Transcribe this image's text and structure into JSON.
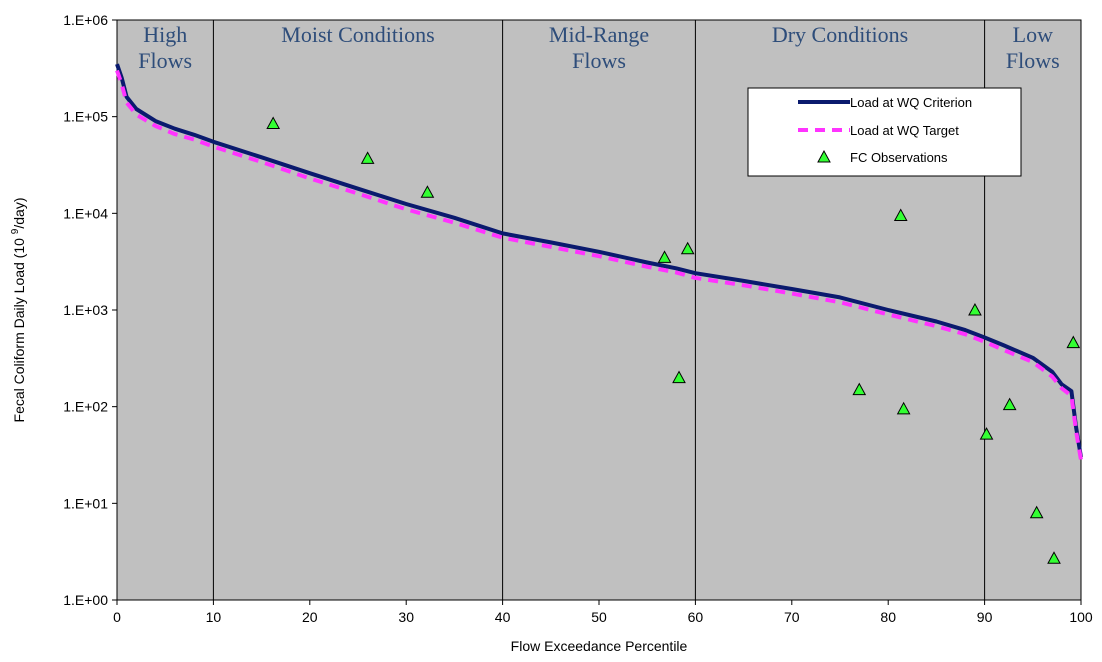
{
  "chart_data": {
    "type": "line",
    "xlabel": "Flow Exceedance Percentile",
    "ylabel_prefix": "Fecal Coliform Daily Load (10 ",
    "ylabel_sup": "9",
    "ylabel_suffix": "/day)",
    "xlim": [
      0,
      100
    ],
    "ylim": [
      1,
      1000000
    ],
    "y_scale": "log",
    "x_ticks": [
      0,
      10,
      20,
      30,
      40,
      50,
      60,
      70,
      80,
      90,
      100
    ],
    "y_ticks": [
      {
        "value": 1,
        "label": "1.E+00"
      },
      {
        "value": 10,
        "label": "1.E+01"
      },
      {
        "value": 100,
        "label": "1.E+02"
      },
      {
        "value": 1000,
        "label": "1.E+03"
      },
      {
        "value": 10000,
        "label": "1.E+04"
      },
      {
        "value": 100000,
        "label": "1.E+05"
      },
      {
        "value": 1000000,
        "label": "1.E+06"
      }
    ],
    "plot_background": "#c0c0c0",
    "dividers": [
      10,
      40,
      60,
      90
    ],
    "regions": [
      {
        "lines": [
          "High",
          "Flows"
        ],
        "x": 5
      },
      {
        "lines": [
          "Moist Conditions"
        ],
        "x": 25
      },
      {
        "lines": [
          "Mid-Range",
          "Flows"
        ],
        "x": 50
      },
      {
        "lines": [
          "Dry Conditions"
        ],
        "x": 75
      },
      {
        "lines": [
          "Low",
          "Flows"
        ],
        "x": 95
      }
    ],
    "legend_position": "top-right",
    "series": [
      {
        "name": "Load at WQ Criterion",
        "style": "line",
        "color": "#0a1a6e",
        "x": [
          0,
          0.5,
          1,
          2,
          4,
          6,
          8,
          10,
          15,
          20,
          25,
          30,
          35,
          40,
          45,
          50,
          55,
          58,
          60,
          65,
          70,
          75,
          80,
          85,
          88,
          90,
          92,
          95,
          97,
          98,
          99,
          99.5,
          100
        ],
        "y": [
          350000,
          250000,
          160000,
          120000,
          90000,
          75000,
          65000,
          55000,
          38000,
          26000,
          18000,
          12500,
          9000,
          6200,
          5000,
          4000,
          3100,
          2700,
          2400,
          2000,
          1650,
          1350,
          1000,
          760,
          620,
          520,
          430,
          320,
          230,
          170,
          145,
          60,
          30
        ]
      },
      {
        "name": "Load at WQ Target",
        "style": "dashed",
        "color": "#ff33ff",
        "x": [
          0,
          0.5,
          1,
          2,
          4,
          6,
          8,
          10,
          15,
          20,
          25,
          30,
          35,
          40,
          45,
          50,
          55,
          58,
          60,
          65,
          70,
          75,
          80,
          85,
          88,
          90,
          92,
          95,
          97,
          98,
          99,
          99.5,
          100
        ],
        "y": [
          300000,
          215000,
          140000,
          105000,
          80000,
          66000,
          58000,
          49000,
          34000,
          23000,
          16000,
          11000,
          8000,
          5600,
          4500,
          3600,
          2800,
          2450,
          2150,
          1800,
          1480,
          1200,
          900,
          680,
          560,
          470,
          385,
          290,
          205,
          155,
          130,
          55,
          28
        ]
      },
      {
        "name": "FC Observations",
        "style": "marker",
        "color": "#33ff33",
        "x": [
          16.2,
          26.0,
          32.2,
          56.8,
          58.3,
          59.2,
          77.0,
          81.3,
          81.6,
          89.0,
          90.2,
          92.6,
          95.4,
          97.2,
          99.2
        ],
        "y": [
          85000,
          37000,
          16500,
          3500,
          200,
          4300,
          150,
          9500,
          95,
          1000,
          52,
          105,
          8,
          2.7,
          460
        ]
      }
    ]
  }
}
